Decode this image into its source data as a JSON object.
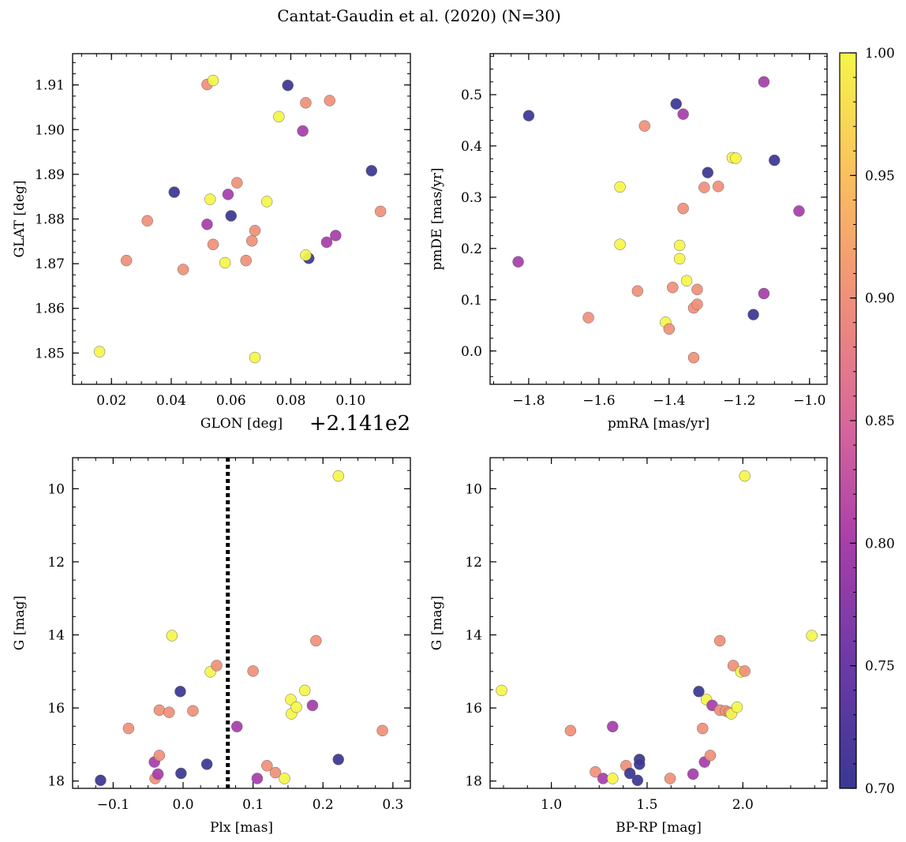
{
  "title": "Cantat-Gaudin et al. (2020) (N=30)",
  "colormap": "plasma",
  "colorbar": {
    "range": [
      0.7,
      1.0
    ],
    "ticks": [
      0.7,
      0.75,
      0.8,
      0.85,
      0.9,
      0.95,
      1.0
    ],
    "tick_labels": [
      "0.70",
      "0.75",
      "0.80",
      "0.85",
      "0.90",
      "0.95",
      "1.00"
    ]
  },
  "chart_data": [
    {
      "type": "scatter",
      "id": "glon-glat",
      "xlabel": "GLON [deg]",
      "ylabel": "GLAT [deg]",
      "offset_text": "+2.141e2",
      "xlim": [
        0.007,
        0.12
      ],
      "ylim": [
        1.843,
        1.917
      ],
      "xticks": [
        0.02,
        0.04,
        0.06,
        0.08,
        0.1
      ],
      "xtick_labels": [
        "0.02",
        "0.04",
        "0.06",
        "0.08",
        "0.10"
      ],
      "yticks": [
        1.85,
        1.86,
        1.87,
        1.88,
        1.89,
        1.9,
        1.91
      ],
      "ytick_labels": [
        "1.85",
        "1.86",
        "1.87",
        "1.88",
        "1.89",
        "1.90",
        "1.91"
      ],
      "points": [
        {
          "x": 0.016,
          "y": 1.8503,
          "c": 1.0
        },
        {
          "x": 0.025,
          "y": 1.8707,
          "c": 0.9
        },
        {
          "x": 0.032,
          "y": 1.8796,
          "c": 0.9
        },
        {
          "x": 0.041,
          "y": 1.886,
          "c": 0.7
        },
        {
          "x": 0.044,
          "y": 1.8687,
          "c": 0.9
        },
        {
          "x": 0.052,
          "y": 1.9101,
          "c": 0.9
        },
        {
          "x": 0.054,
          "y": 1.911,
          "c": 1.0
        },
        {
          "x": 0.053,
          "y": 1.8844,
          "c": 1.0
        },
        {
          "x": 0.052,
          "y": 1.8788,
          "c": 0.8
        },
        {
          "x": 0.054,
          "y": 1.8743,
          "c": 0.9
        },
        {
          "x": 0.058,
          "y": 1.8702,
          "c": 1.0
        },
        {
          "x": 0.059,
          "y": 1.8855,
          "c": 0.8
        },
        {
          "x": 0.06,
          "y": 1.8807,
          "c": 0.7
        },
        {
          "x": 0.062,
          "y": 1.8881,
          "c": 0.9
        },
        {
          "x": 0.065,
          "y": 1.8707,
          "c": 0.9
        },
        {
          "x": 0.067,
          "y": 1.8751,
          "c": 0.9
        },
        {
          "x": 0.068,
          "y": 1.8774,
          "c": 0.9
        },
        {
          "x": 0.068,
          "y": 1.849,
          "c": 1.0
        },
        {
          "x": 0.072,
          "y": 1.8839,
          "c": 1.0
        },
        {
          "x": 0.076,
          "y": 1.9029,
          "c": 1.0
        },
        {
          "x": 0.079,
          "y": 1.9099,
          "c": 0.7
        },
        {
          "x": 0.084,
          "y": 1.8997,
          "c": 0.8
        },
        {
          "x": 0.085,
          "y": 1.906,
          "c": 0.9
        },
        {
          "x": 0.086,
          "y": 1.8712,
          "c": 0.7
        },
        {
          "x": 0.085,
          "y": 1.8719,
          "c": 1.0
        },
        {
          "x": 0.092,
          "y": 1.8748,
          "c": 0.8
        },
        {
          "x": 0.093,
          "y": 1.9065,
          "c": 0.9
        },
        {
          "x": 0.095,
          "y": 1.8763,
          "c": 0.8
        },
        {
          "x": 0.107,
          "y": 1.8908,
          "c": 0.7
        },
        {
          "x": 0.11,
          "y": 1.8817,
          "c": 0.9
        }
      ]
    },
    {
      "type": "scatter",
      "id": "pm",
      "xlabel": "pmRA [mas/yr]",
      "ylabel": "pmDE [mas/yr]",
      "xlim": [
        -1.91,
        -0.95
      ],
      "ylim": [
        -0.065,
        0.58
      ],
      "xticks": [
        -1.8,
        -1.6,
        -1.4,
        -1.2,
        -1.0
      ],
      "xtick_labels": [
        "−1.8",
        "−1.6",
        "−1.4",
        "−1.2",
        "−1.0"
      ],
      "yticks": [
        0.0,
        0.1,
        0.2,
        0.3,
        0.4,
        0.5
      ],
      "ytick_labels": [
        "0.0",
        "0.1",
        "0.2",
        "0.3",
        "0.4",
        "0.5"
      ],
      "points": [
        {
          "x": -1.83,
          "y": 0.174,
          "c": 0.8
        },
        {
          "x": -1.8,
          "y": 0.459,
          "c": 0.7
        },
        {
          "x": -1.63,
          "y": 0.065,
          "c": 0.9
        },
        {
          "x": -1.54,
          "y": 0.32,
          "c": 1.0
        },
        {
          "x": -1.54,
          "y": 0.208,
          "c": 1.0
        },
        {
          "x": -1.49,
          "y": 0.117,
          "c": 0.9
        },
        {
          "x": -1.47,
          "y": 0.439,
          "c": 0.9
        },
        {
          "x": -1.41,
          "y": 0.056,
          "c": 1.0
        },
        {
          "x": -1.4,
          "y": 0.043,
          "c": 0.9
        },
        {
          "x": -1.39,
          "y": 0.124,
          "c": 0.9
        },
        {
          "x": -1.38,
          "y": 0.482,
          "c": 0.7
        },
        {
          "x": -1.37,
          "y": 0.206,
          "c": 1.0
        },
        {
          "x": -1.37,
          "y": 0.18,
          "c": 1.0
        },
        {
          "x": -1.36,
          "y": 0.462,
          "c": 0.8
        },
        {
          "x": -1.36,
          "y": 0.278,
          "c": 0.9
        },
        {
          "x": -1.35,
          "y": 0.137,
          "c": 1.0
        },
        {
          "x": -1.33,
          "y": -0.013,
          "c": 0.9
        },
        {
          "x": -1.33,
          "y": 0.084,
          "c": 0.9
        },
        {
          "x": -1.32,
          "y": 0.091,
          "c": 0.9
        },
        {
          "x": -1.32,
          "y": 0.12,
          "c": 0.9
        },
        {
          "x": -1.3,
          "y": 0.319,
          "c": 0.9
        },
        {
          "x": -1.29,
          "y": 0.348,
          "c": 0.7
        },
        {
          "x": -1.26,
          "y": 0.321,
          "c": 0.9
        },
        {
          "x": -1.22,
          "y": 0.377,
          "c": 1.0
        },
        {
          "x": -1.21,
          "y": 0.376,
          "c": 1.0
        },
        {
          "x": -1.16,
          "y": 0.071,
          "c": 0.7
        },
        {
          "x": -1.13,
          "y": 0.525,
          "c": 0.8
        },
        {
          "x": -1.13,
          "y": 0.112,
          "c": 0.8
        },
        {
          "x": -1.1,
          "y": 0.372,
          "c": 0.7
        },
        {
          "x": -1.03,
          "y": 0.273,
          "c": 0.8
        }
      ]
    },
    {
      "type": "scatter",
      "id": "plx-g",
      "xlabel": "Plx [mas]",
      "ylabel": "G [mag]",
      "xlim": [
        -0.158,
        0.325
      ],
      "ylim": [
        18.2,
        9.15
      ],
      "y_inverted": true,
      "vline": {
        "x": 0.064,
        "style": "dotted"
      },
      "xticks": [
        -0.1,
        0.0,
        0.1,
        0.2,
        0.3
      ],
      "xtick_labels": [
        "−0.1",
        "0.0",
        "0.1",
        "0.2",
        "0.3"
      ],
      "yticks": [
        10,
        12,
        14,
        16,
        18
      ],
      "ytick_labels": [
        "10",
        "12",
        "14",
        "16",
        "18"
      ],
      "points": [
        {
          "x": -0.118,
          "y": 17.98,
          "c": 0.7
        },
        {
          "x": -0.078,
          "y": 16.56,
          "c": 0.9
        },
        {
          "x": -0.04,
          "y": 17.93,
          "c": 0.9
        },
        {
          "x": -0.041,
          "y": 17.48,
          "c": 0.8
        },
        {
          "x": -0.036,
          "y": 17.81,
          "c": 0.8
        },
        {
          "x": -0.034,
          "y": 17.3,
          "c": 0.9
        },
        {
          "x": -0.034,
          "y": 16.06,
          "c": 0.9
        },
        {
          "x": -0.02,
          "y": 16.12,
          "c": 0.9
        },
        {
          "x": -0.016,
          "y": 14.02,
          "c": 1.0
        },
        {
          "x": -0.003,
          "y": 17.79,
          "c": 0.7
        },
        {
          "x": -0.004,
          "y": 15.55,
          "c": 0.7
        },
        {
          "x": 0.014,
          "y": 16.08,
          "c": 0.9
        },
        {
          "x": 0.034,
          "y": 17.54,
          "c": 0.7
        },
        {
          "x": 0.039,
          "y": 15.01,
          "c": 1.0
        },
        {
          "x": 0.048,
          "y": 14.84,
          "c": 0.9
        },
        {
          "x": 0.077,
          "y": 16.51,
          "c": 0.8
        },
        {
          "x": 0.1,
          "y": 14.99,
          "c": 0.9
        },
        {
          "x": 0.106,
          "y": 17.93,
          "c": 0.8
        },
        {
          "x": 0.12,
          "y": 17.58,
          "c": 0.9
        },
        {
          "x": 0.132,
          "y": 17.77,
          "c": 0.9
        },
        {
          "x": 0.145,
          "y": 17.93,
          "c": 1.0
        },
        {
          "x": 0.154,
          "y": 15.77,
          "c": 1.0
        },
        {
          "x": 0.155,
          "y": 16.16,
          "c": 1.0
        },
        {
          "x": 0.162,
          "y": 15.98,
          "c": 1.0
        },
        {
          "x": 0.174,
          "y": 15.52,
          "c": 1.0
        },
        {
          "x": 0.185,
          "y": 15.93,
          "c": 0.8
        },
        {
          "x": 0.19,
          "y": 14.16,
          "c": 0.9
        },
        {
          "x": 0.222,
          "y": 17.41,
          "c": 0.7
        },
        {
          "x": 0.222,
          "y": 9.65,
          "c": 1.0
        },
        {
          "x": 0.285,
          "y": 16.62,
          "c": 0.9
        }
      ]
    },
    {
      "type": "scatter",
      "id": "color-magnitude",
      "xlabel": "BP-RP [mag]",
      "ylabel": "G [mag]",
      "xlim": [
        0.68,
        2.44
      ],
      "ylim": [
        18.2,
        9.15
      ],
      "y_inverted": true,
      "xticks": [
        1.0,
        1.5,
        2.0
      ],
      "xtick_labels": [
        "1.0",
        "1.5",
        "2.0"
      ],
      "yticks": [
        10,
        12,
        14,
        16,
        18
      ],
      "ytick_labels": [
        "10",
        "12",
        "14",
        "16",
        "18"
      ],
      "points": [
        {
          "x": 0.74,
          "y": 15.52,
          "c": 1.0
        },
        {
          "x": 1.1,
          "y": 16.62,
          "c": 0.9
        },
        {
          "x": 1.23,
          "y": 17.75,
          "c": 0.9
        },
        {
          "x": 1.27,
          "y": 17.93,
          "c": 0.8
        },
        {
          "x": 1.32,
          "y": 17.93,
          "c": 1.0
        },
        {
          "x": 1.32,
          "y": 16.51,
          "c": 0.8
        },
        {
          "x": 1.39,
          "y": 17.58,
          "c": 0.9
        },
        {
          "x": 1.41,
          "y": 17.79,
          "c": 0.7
        },
        {
          "x": 1.45,
          "y": 17.98,
          "c": 0.7
        },
        {
          "x": 1.46,
          "y": 17.41,
          "c": 0.7
        },
        {
          "x": 1.46,
          "y": 17.54,
          "c": 0.7
        },
        {
          "x": 1.62,
          "y": 17.93,
          "c": 0.9
        },
        {
          "x": 1.74,
          "y": 17.81,
          "c": 0.8
        },
        {
          "x": 1.77,
          "y": 15.55,
          "c": 0.7
        },
        {
          "x": 1.79,
          "y": 16.56,
          "c": 0.9
        },
        {
          "x": 1.8,
          "y": 17.48,
          "c": 0.8
        },
        {
          "x": 1.81,
          "y": 15.77,
          "c": 1.0
        },
        {
          "x": 1.83,
          "y": 17.3,
          "c": 0.9
        },
        {
          "x": 1.84,
          "y": 15.93,
          "c": 0.8
        },
        {
          "x": 1.88,
          "y": 14.16,
          "c": 0.9
        },
        {
          "x": 1.88,
          "y": 16.06,
          "c": 0.9
        },
        {
          "x": 1.91,
          "y": 16.08,
          "c": 0.9
        },
        {
          "x": 1.93,
          "y": 16.12,
          "c": 0.9
        },
        {
          "x": 1.94,
          "y": 16.16,
          "c": 1.0
        },
        {
          "x": 1.95,
          "y": 14.84,
          "c": 0.9
        },
        {
          "x": 1.97,
          "y": 15.98,
          "c": 1.0
        },
        {
          "x": 1.99,
          "y": 15.01,
          "c": 1.0
        },
        {
          "x": 2.01,
          "y": 14.99,
          "c": 0.9
        },
        {
          "x": 2.01,
          "y": 9.65,
          "c": 1.0
        },
        {
          "x": 2.36,
          "y": 14.02,
          "c": 1.0
        }
      ]
    }
  ]
}
